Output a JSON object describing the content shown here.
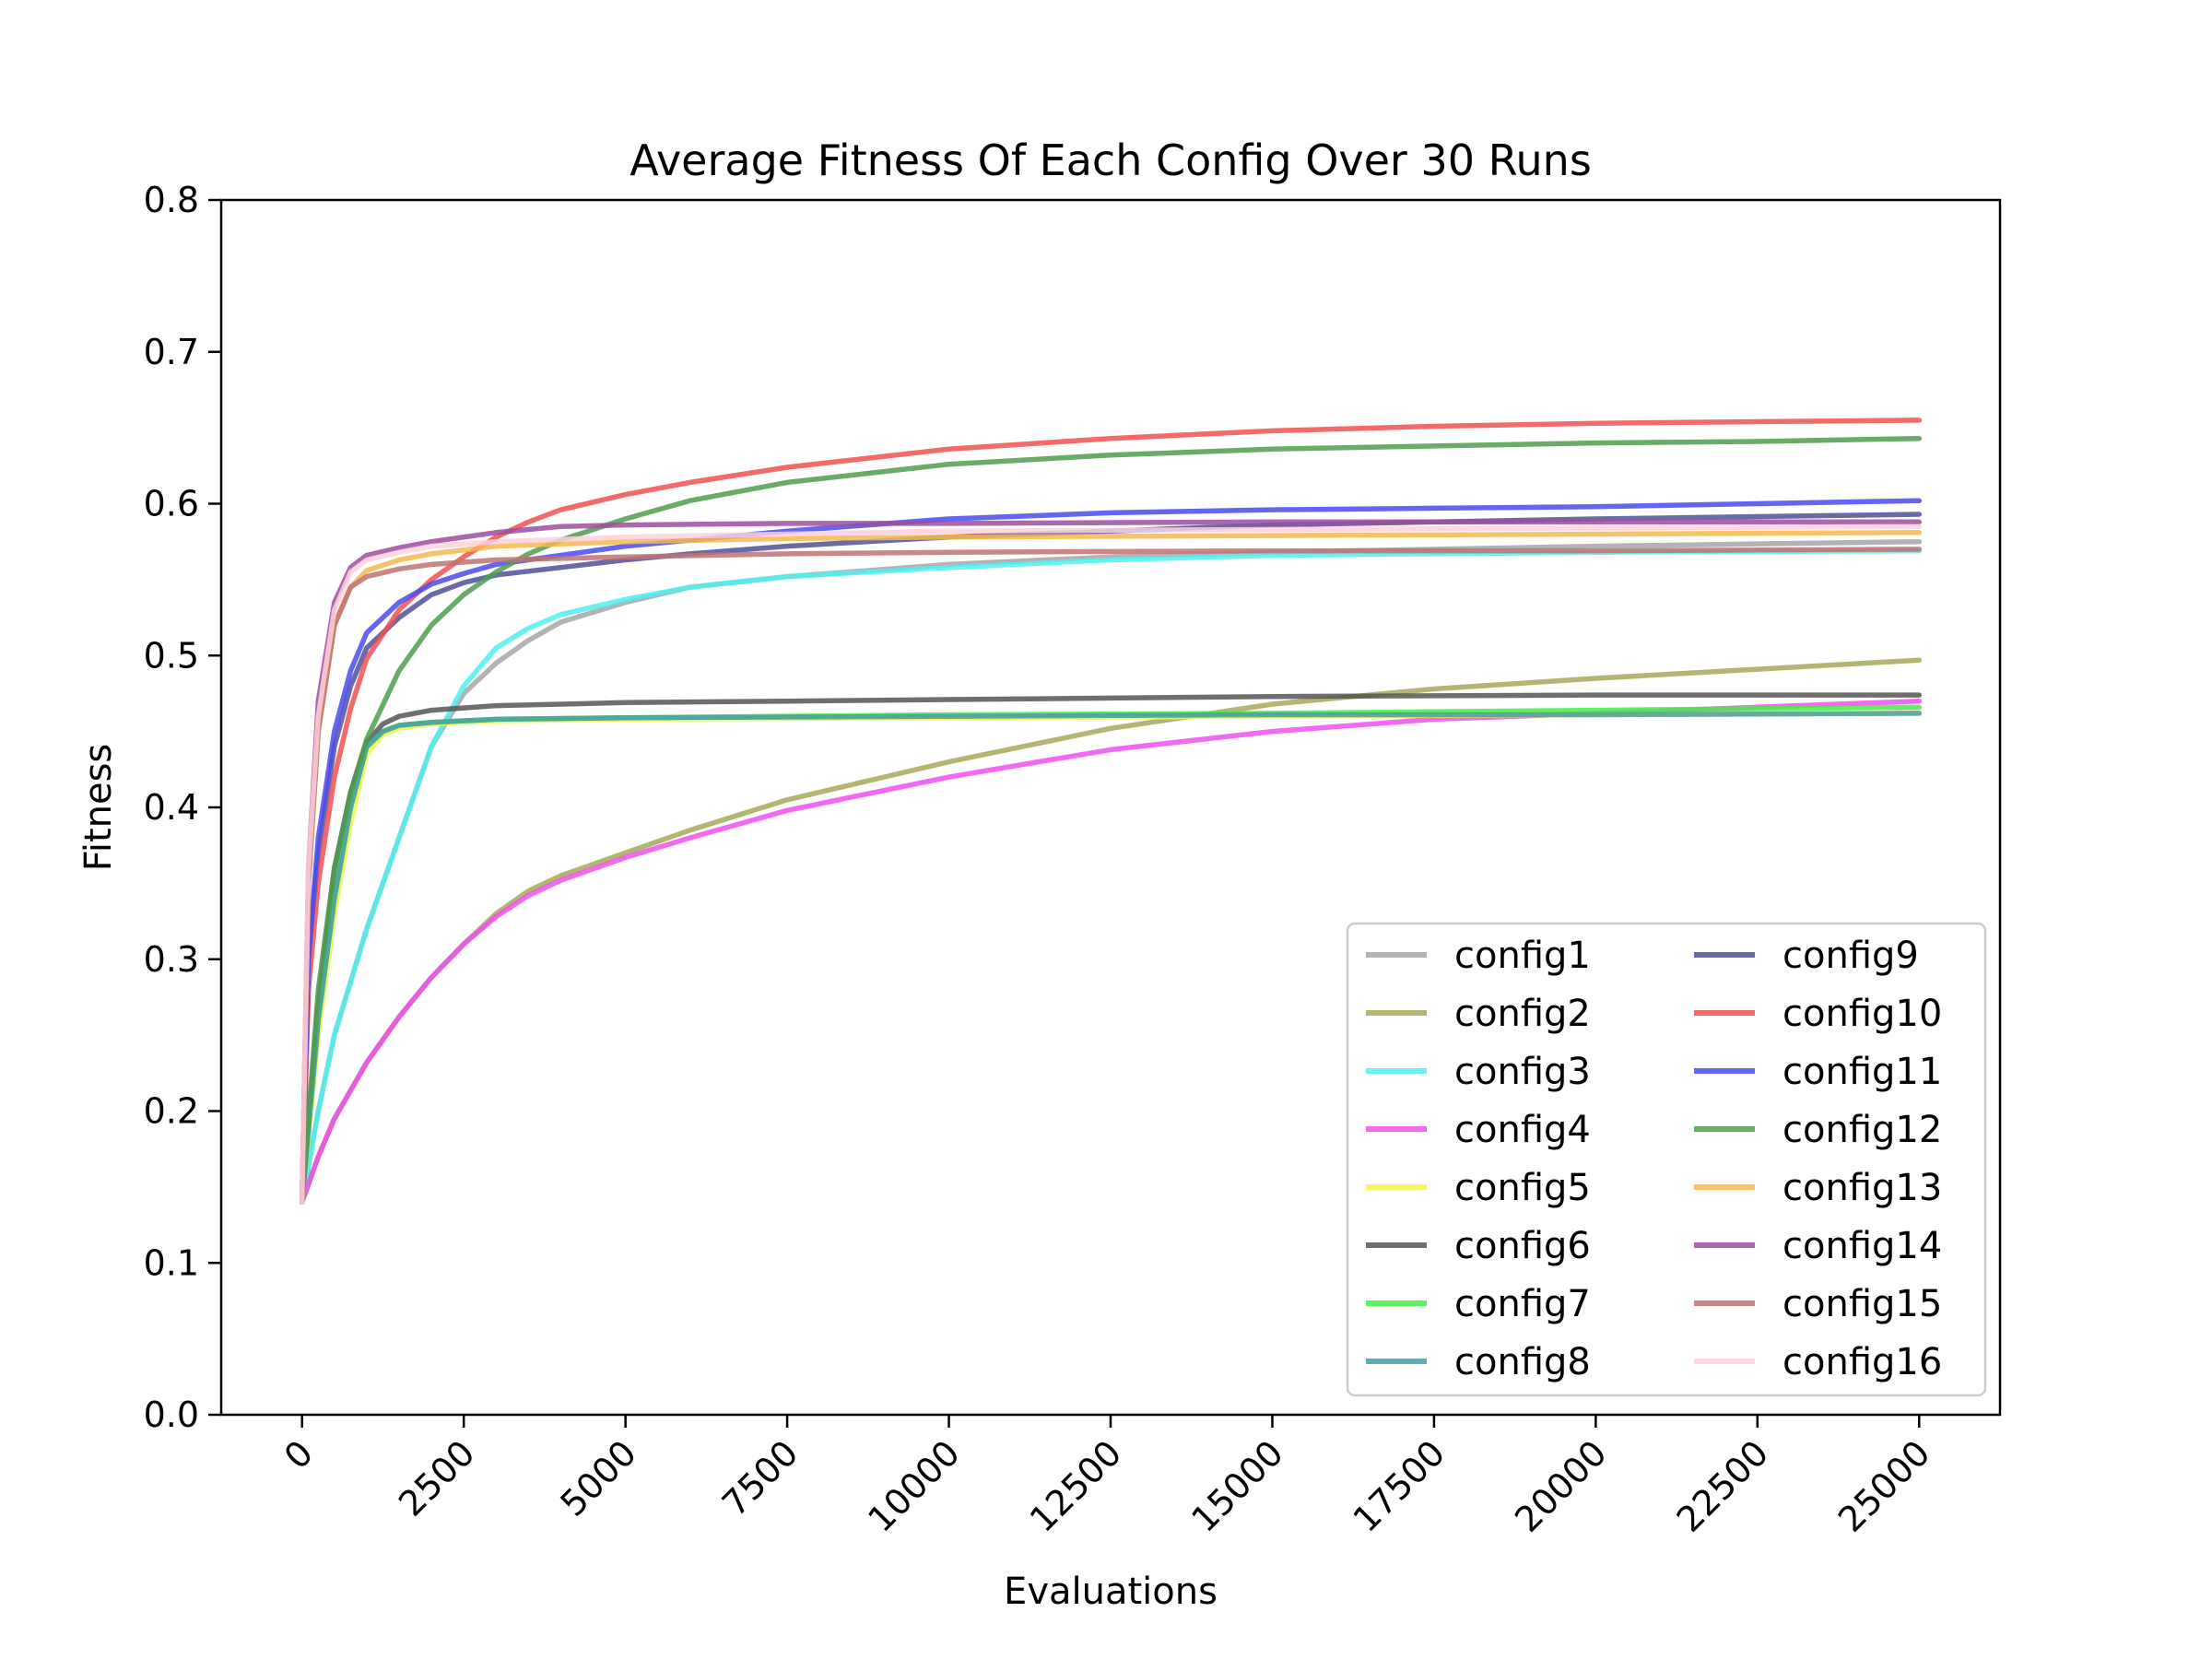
{
  "chart_data": {
    "type": "line",
    "title": "Average Fitness Of Each Config Over 30 Runs",
    "xlabel": "Evaluations",
    "ylabel": "Fitness",
    "xlim": [
      -1250,
      26250
    ],
    "ylim": [
      0.0,
      0.8
    ],
    "x_ticks": [
      "0",
      "2500",
      "5000",
      "7500",
      "10000",
      "12500",
      "15000",
      "17500",
      "20000",
      "22500",
      "25000"
    ],
    "y_ticks": [
      "0.0",
      "0.1",
      "0.2",
      "0.3",
      "0.4",
      "0.5",
      "0.6",
      "0.7",
      "0.8"
    ],
    "grid": false,
    "legend_position": "lower-right",
    "legend_columns": 2,
    "series": [
      {
        "name": "config1",
        "color": "#a6a6a6",
        "points": [
          [
            0,
            0.14
          ],
          [
            250,
            0.2
          ],
          [
            500,
            0.25
          ],
          [
            1000,
            0.32
          ],
          [
            1500,
            0.38
          ],
          [
            2000,
            0.44
          ],
          [
            2500,
            0.475
          ],
          [
            3000,
            0.495
          ],
          [
            3500,
            0.51
          ],
          [
            4000,
            0.522
          ],
          [
            5000,
            0.535
          ],
          [
            6000,
            0.545
          ],
          [
            7500,
            0.552
          ],
          [
            10000,
            0.56
          ],
          [
            12500,
            0.565
          ],
          [
            15000,
            0.568
          ],
          [
            20000,
            0.572
          ],
          [
            25000,
            0.575
          ]
        ]
      },
      {
        "name": "config2",
        "color": "#a8a85a",
        "points": [
          [
            0,
            0.14
          ],
          [
            250,
            0.17
          ],
          [
            500,
            0.195
          ],
          [
            1000,
            0.232
          ],
          [
            1500,
            0.262
          ],
          [
            2000,
            0.288
          ],
          [
            2500,
            0.31
          ],
          [
            3000,
            0.33
          ],
          [
            3500,
            0.345
          ],
          [
            4000,
            0.355
          ],
          [
            5000,
            0.37
          ],
          [
            6000,
            0.385
          ],
          [
            7500,
            0.405
          ],
          [
            10000,
            0.43
          ],
          [
            12500,
            0.452
          ],
          [
            15000,
            0.468
          ],
          [
            17500,
            0.478
          ],
          [
            20000,
            0.485
          ],
          [
            22500,
            0.491
          ],
          [
            25000,
            0.497
          ]
        ]
      },
      {
        "name": "config3",
        "color": "#4df0f0",
        "points": [
          [
            0,
            0.14
          ],
          [
            250,
            0.2
          ],
          [
            500,
            0.25
          ],
          [
            1000,
            0.32
          ],
          [
            1500,
            0.38
          ],
          [
            2000,
            0.44
          ],
          [
            2500,
            0.48
          ],
          [
            3000,
            0.505
          ],
          [
            3500,
            0.518
          ],
          [
            4000,
            0.527
          ],
          [
            5000,
            0.537
          ],
          [
            6000,
            0.545
          ],
          [
            7500,
            0.552
          ],
          [
            10000,
            0.558
          ],
          [
            12500,
            0.563
          ],
          [
            15000,
            0.566
          ],
          [
            20000,
            0.568
          ],
          [
            25000,
            0.569
          ]
        ]
      },
      {
        "name": "config4",
        "color": "#f04ff0",
        "points": [
          [
            0,
            0.14
          ],
          [
            250,
            0.17
          ],
          [
            500,
            0.195
          ],
          [
            1000,
            0.232
          ],
          [
            1500,
            0.262
          ],
          [
            2000,
            0.288
          ],
          [
            2500,
            0.31
          ],
          [
            3000,
            0.328
          ],
          [
            3500,
            0.342
          ],
          [
            4000,
            0.352
          ],
          [
            5000,
            0.367
          ],
          [
            6000,
            0.38
          ],
          [
            7500,
            0.398
          ],
          [
            10000,
            0.42
          ],
          [
            12500,
            0.438
          ],
          [
            15000,
            0.45
          ],
          [
            17500,
            0.458
          ],
          [
            20000,
            0.462
          ],
          [
            22500,
            0.466
          ],
          [
            25000,
            0.47
          ]
        ]
      },
      {
        "name": "config5",
        "color": "#f5f54a",
        "points": [
          [
            0,
            0.14
          ],
          [
            250,
            0.25
          ],
          [
            500,
            0.33
          ],
          [
            750,
            0.39
          ],
          [
            1000,
            0.435
          ],
          [
            1250,
            0.448
          ],
          [
            1500,
            0.452
          ],
          [
            2000,
            0.455
          ],
          [
            3000,
            0.457
          ],
          [
            5000,
            0.458
          ],
          [
            10000,
            0.459
          ],
          [
            15000,
            0.46
          ],
          [
            20000,
            0.461
          ],
          [
            25000,
            0.462
          ]
        ]
      },
      {
        "name": "config6",
        "color": "#555555",
        "points": [
          [
            0,
            0.14
          ],
          [
            250,
            0.27
          ],
          [
            500,
            0.36
          ],
          [
            750,
            0.41
          ],
          [
            1000,
            0.443
          ],
          [
            1250,
            0.455
          ],
          [
            1500,
            0.46
          ],
          [
            2000,
            0.464
          ],
          [
            3000,
            0.467
          ],
          [
            4000,
            0.468
          ],
          [
            5000,
            0.469
          ],
          [
            7500,
            0.47
          ],
          [
            10000,
            0.471
          ],
          [
            12500,
            0.472
          ],
          [
            15000,
            0.473
          ],
          [
            20000,
            0.474
          ],
          [
            25000,
            0.474
          ]
        ]
      },
      {
        "name": "config7",
        "color": "#44ee44",
        "points": [
          [
            0,
            0.14
          ],
          [
            250,
            0.26
          ],
          [
            500,
            0.34
          ],
          [
            750,
            0.4
          ],
          [
            1000,
            0.44
          ],
          [
            1250,
            0.45
          ],
          [
            1500,
            0.454
          ],
          [
            2000,
            0.456
          ],
          [
            3000,
            0.458
          ],
          [
            5000,
            0.459
          ],
          [
            10000,
            0.461
          ],
          [
            15000,
            0.462
          ],
          [
            20000,
            0.464
          ],
          [
            25000,
            0.466
          ]
        ]
      },
      {
        "name": "config8",
        "color": "#4a9ea3",
        "points": [
          [
            0,
            0.14
          ],
          [
            250,
            0.26
          ],
          [
            500,
            0.34
          ],
          [
            750,
            0.4
          ],
          [
            1000,
            0.44
          ],
          [
            1250,
            0.45
          ],
          [
            1500,
            0.454
          ],
          [
            2000,
            0.456
          ],
          [
            3000,
            0.458
          ],
          [
            5000,
            0.459
          ],
          [
            10000,
            0.46
          ],
          [
            15000,
            0.461
          ],
          [
            20000,
            0.461
          ],
          [
            25000,
            0.462
          ]
        ]
      },
      {
        "name": "config9",
        "color": "#505099",
        "points": [
          [
            0,
            0.14
          ],
          [
            100,
            0.3
          ],
          [
            250,
            0.37
          ],
          [
            500,
            0.44
          ],
          [
            750,
            0.48
          ],
          [
            1000,
            0.505
          ],
          [
            1500,
            0.525
          ],
          [
            2000,
            0.54
          ],
          [
            2500,
            0.548
          ],
          [
            3000,
            0.553
          ],
          [
            4000,
            0.558
          ],
          [
            5000,
            0.563
          ],
          [
            6000,
            0.567
          ],
          [
            7500,
            0.572
          ],
          [
            10000,
            0.578
          ],
          [
            12500,
            0.582
          ],
          [
            15000,
            0.586
          ],
          [
            20000,
            0.59
          ],
          [
            25000,
            0.593
          ]
        ]
      },
      {
        "name": "config10",
        "color": "#f05050",
        "points": [
          [
            0,
            0.14
          ],
          [
            100,
            0.28
          ],
          [
            250,
            0.35
          ],
          [
            500,
            0.42
          ],
          [
            750,
            0.465
          ],
          [
            1000,
            0.498
          ],
          [
            1500,
            0.53
          ],
          [
            2000,
            0.55
          ],
          [
            2500,
            0.565
          ],
          [
            3000,
            0.578
          ],
          [
            3500,
            0.588
          ],
          [
            4000,
            0.596
          ],
          [
            5000,
            0.606
          ],
          [
            6000,
            0.614
          ],
          [
            7500,
            0.624
          ],
          [
            10000,
            0.636
          ],
          [
            12500,
            0.643
          ],
          [
            15000,
            0.648
          ],
          [
            17500,
            0.651
          ],
          [
            20000,
            0.653
          ],
          [
            22500,
            0.654
          ],
          [
            25000,
            0.655
          ]
        ]
      },
      {
        "name": "config11",
        "color": "#4a4af0",
        "points": [
          [
            0,
            0.14
          ],
          [
            100,
            0.3
          ],
          [
            250,
            0.38
          ],
          [
            500,
            0.45
          ],
          [
            750,
            0.49
          ],
          [
            1000,
            0.515
          ],
          [
            1500,
            0.535
          ],
          [
            2000,
            0.547
          ],
          [
            2500,
            0.554
          ],
          [
            3000,
            0.56
          ],
          [
            4000,
            0.566
          ],
          [
            5000,
            0.572
          ],
          [
            7500,
            0.582
          ],
          [
            10000,
            0.59
          ],
          [
            12500,
            0.594
          ],
          [
            15000,
            0.596
          ],
          [
            17500,
            0.597
          ],
          [
            20000,
            0.598
          ],
          [
            22500,
            0.6
          ],
          [
            25000,
            0.602
          ]
        ]
      },
      {
        "name": "config12",
        "color": "#4d9e4d",
        "points": [
          [
            0,
            0.14
          ],
          [
            250,
            0.28
          ],
          [
            500,
            0.36
          ],
          [
            750,
            0.41
          ],
          [
            1000,
            0.445
          ],
          [
            1500,
            0.49
          ],
          [
            2000,
            0.52
          ],
          [
            2500,
            0.54
          ],
          [
            3000,
            0.555
          ],
          [
            3500,
            0.567
          ],
          [
            4000,
            0.576
          ],
          [
            5000,
            0.59
          ],
          [
            6000,
            0.602
          ],
          [
            7500,
            0.614
          ],
          [
            10000,
            0.626
          ],
          [
            12500,
            0.632
          ],
          [
            15000,
            0.636
          ],
          [
            17500,
            0.638
          ],
          [
            20000,
            0.64
          ],
          [
            22500,
            0.641
          ],
          [
            25000,
            0.643
          ]
        ]
      },
      {
        "name": "config13",
        "color": "#f5b84d",
        "points": [
          [
            0,
            0.14
          ],
          [
            100,
            0.35
          ],
          [
            250,
            0.45
          ],
          [
            500,
            0.52
          ],
          [
            750,
            0.545
          ],
          [
            1000,
            0.556
          ],
          [
            1500,
            0.563
          ],
          [
            2000,
            0.567
          ],
          [
            3000,
            0.572
          ],
          [
            5000,
            0.575
          ],
          [
            7500,
            0.577
          ],
          [
            10000,
            0.578
          ],
          [
            15000,
            0.579
          ],
          [
            20000,
            0.58
          ],
          [
            25000,
            0.581
          ]
        ]
      },
      {
        "name": "config14",
        "color": "#9e4d9e",
        "points": [
          [
            0,
            0.14
          ],
          [
            100,
            0.36
          ],
          [
            250,
            0.47
          ],
          [
            500,
            0.535
          ],
          [
            750,
            0.558
          ],
          [
            1000,
            0.566
          ],
          [
            1500,
            0.571
          ],
          [
            2000,
            0.575
          ],
          [
            3000,
            0.581
          ],
          [
            4000,
            0.585
          ],
          [
            5000,
            0.586
          ],
          [
            7500,
            0.587
          ],
          [
            10000,
            0.587
          ],
          [
            15000,
            0.588
          ],
          [
            20000,
            0.588
          ],
          [
            25000,
            0.588
          ]
        ]
      },
      {
        "name": "config15",
        "color": "#c07272",
        "points": [
          [
            0,
            0.14
          ],
          [
            100,
            0.35
          ],
          [
            250,
            0.45
          ],
          [
            500,
            0.52
          ],
          [
            750,
            0.545
          ],
          [
            1000,
            0.552
          ],
          [
            1500,
            0.557
          ],
          [
            2000,
            0.56
          ],
          [
            3000,
            0.563
          ],
          [
            5000,
            0.565
          ],
          [
            7500,
            0.567
          ],
          [
            10000,
            0.568
          ],
          [
            15000,
            0.569
          ],
          [
            20000,
            0.569
          ],
          [
            25000,
            0.57
          ]
        ]
      },
      {
        "name": "config16",
        "color": "#ffd0dc",
        "points": [
          [
            0,
            0.14
          ],
          [
            100,
            0.36
          ],
          [
            250,
            0.46
          ],
          [
            500,
            0.53
          ],
          [
            750,
            0.555
          ],
          [
            1000,
            0.563
          ],
          [
            1500,
            0.568
          ],
          [
            2000,
            0.572
          ],
          [
            3000,
            0.575
          ],
          [
            5000,
            0.578
          ],
          [
            7500,
            0.58
          ],
          [
            10000,
            0.582
          ],
          [
            15000,
            0.583
          ],
          [
            20000,
            0.584
          ],
          [
            25000,
            0.585
          ]
        ]
      }
    ]
  }
}
